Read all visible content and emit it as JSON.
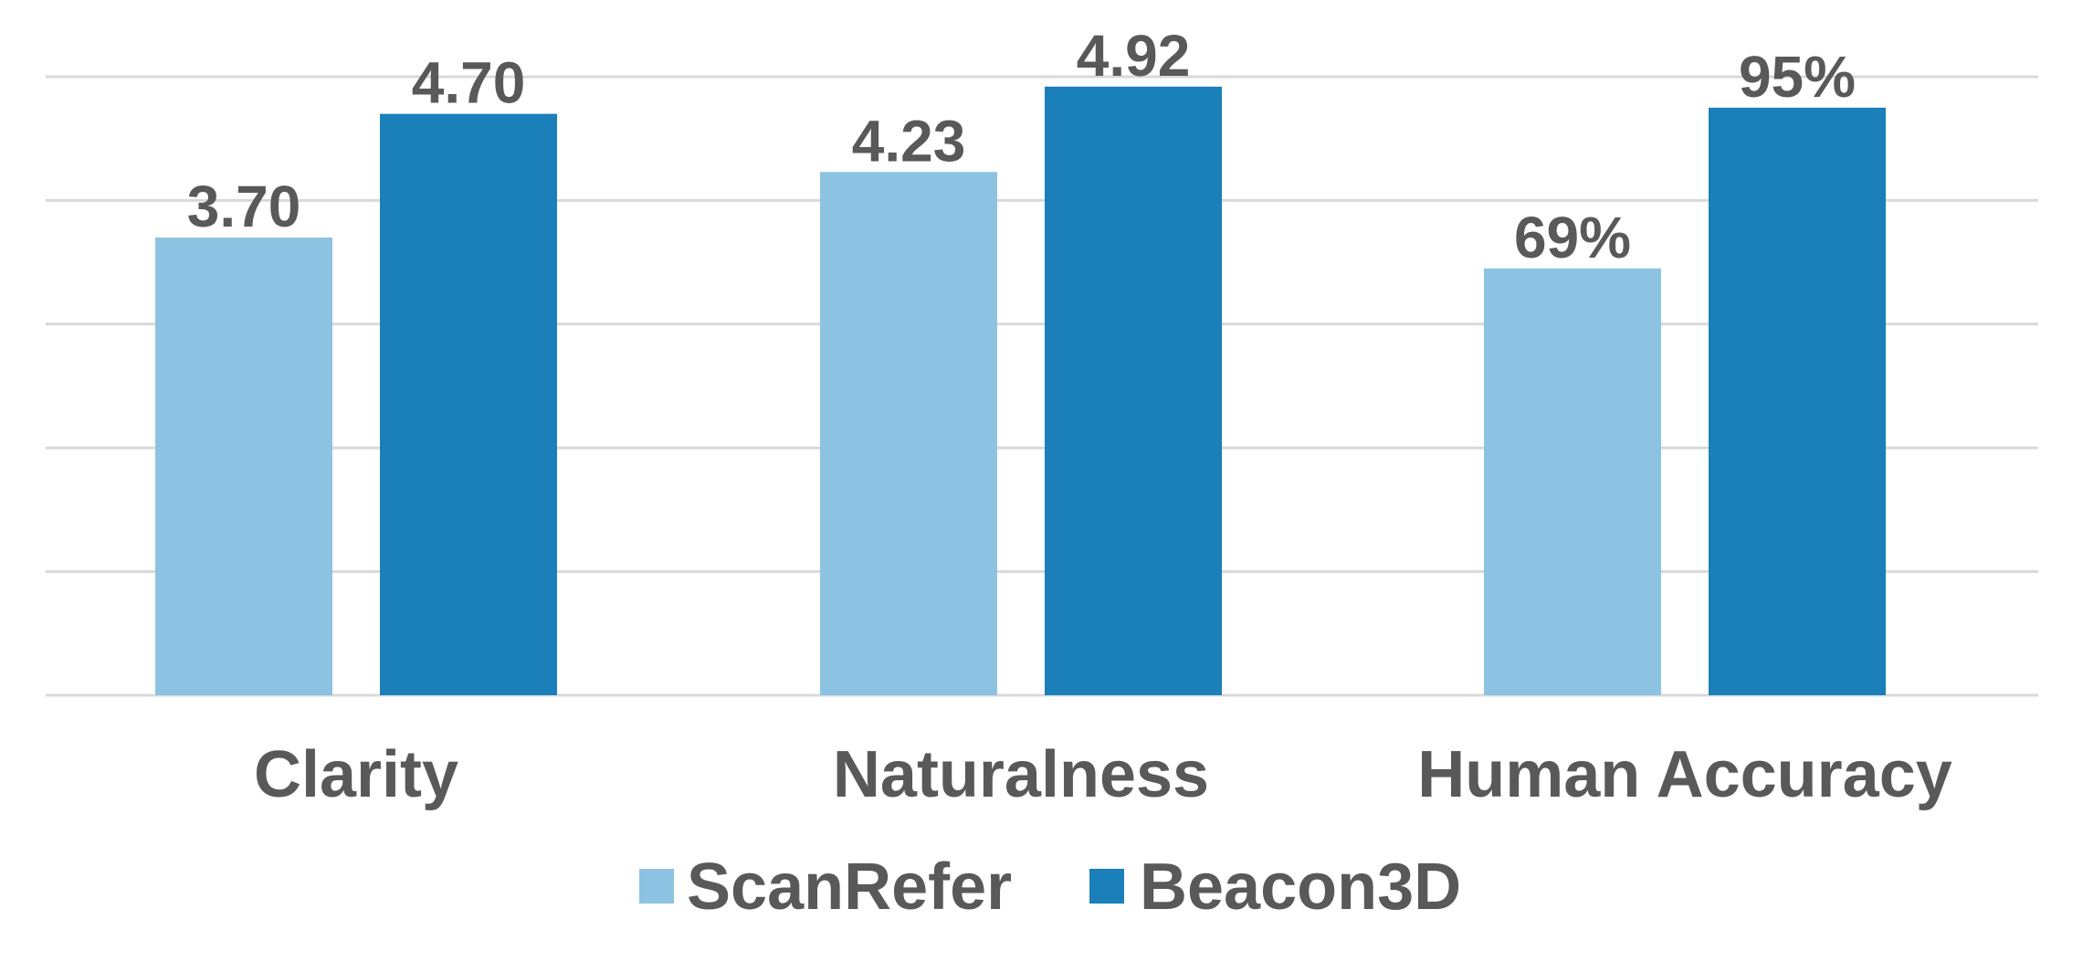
{
  "chart_data": {
    "type": "bar",
    "categories": [
      "Clarity",
      "Naturalness",
      "Human Accuracy"
    ],
    "series": [
      {
        "name": "ScanRefer",
        "values": [
          3.7,
          4.23,
          69
        ],
        "labels": [
          "3.70",
          "4.23",
          "69%"
        ],
        "color": "#8dc3e2"
      },
      {
        "name": "Beacon3D",
        "values": [
          4.7,
          4.92,
          95
        ],
        "labels": [
          "4.70",
          "4.92",
          "95%"
        ],
        "color": "#1b7fba"
      }
    ],
    "category_scale_max": [
      5,
      5,
      100
    ],
    "gridlines": 5,
    "grid": true,
    "legend": "bottom",
    "title": "",
    "xlabel": "",
    "ylabel": ""
  }
}
